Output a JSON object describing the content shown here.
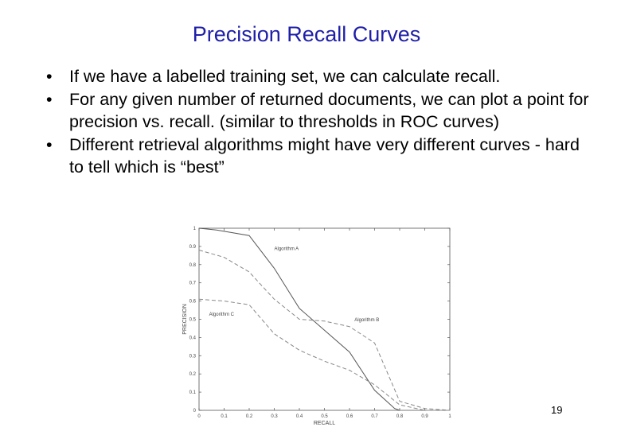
{
  "slide": {
    "title": "Precision Recall Curves",
    "bullets": [
      "If we have a labelled training set, we can calculate recall.",
      "For any given number of returned documents,  we can plot a point for precision vs. recall.  (similar to thresholds in ROC curves)",
      "Different retrieval algorithms might have very different curves - hard to tell which is “best”"
    ],
    "page_number": "19"
  },
  "chart_data": {
    "type": "line",
    "xlabel": "RECALL",
    "ylabel": "PRECISION",
    "xlim": [
      0,
      1
    ],
    "ylim": [
      0,
      1
    ],
    "x_ticks": [
      "0",
      "0.1",
      "0.2",
      "0.3",
      "0.4",
      "0.5",
      "0.6",
      "0.7",
      "0.8",
      "0.9",
      "1"
    ],
    "y_ticks": [
      "0",
      "0.1",
      "0.2",
      "0.3",
      "0.4",
      "0.5",
      "0.6",
      "0.7",
      "0.8",
      "0.9",
      "1"
    ],
    "grid": false,
    "series": [
      {
        "name": "Algorithm A",
        "style": "solid",
        "x": [
          0,
          0.07,
          0.2,
          0.3,
          0.4,
          0.5,
          0.6,
          0.7,
          0.78,
          0.8
        ],
        "y": [
          1.0,
          0.99,
          0.96,
          0.78,
          0.56,
          0.44,
          0.32,
          0.11,
          0.01,
          0.0
        ]
      },
      {
        "name": "Algorithm B",
        "style": "dashed",
        "x": [
          0,
          0.1,
          0.2,
          0.3,
          0.4,
          0.5,
          0.6,
          0.7,
          0.8,
          0.9,
          1.0
        ],
        "y": [
          0.88,
          0.84,
          0.76,
          0.61,
          0.5,
          0.49,
          0.46,
          0.37,
          0.05,
          0.01,
          0.0
        ]
      },
      {
        "name": "Algorithm C",
        "style": "dashed",
        "x": [
          0,
          0.1,
          0.2,
          0.3,
          0.4,
          0.5,
          0.6,
          0.7,
          0.8,
          0.9,
          1.0
        ],
        "y": [
          0.61,
          0.6,
          0.58,
          0.42,
          0.33,
          0.27,
          0.22,
          0.14,
          0.03,
          0.0,
          0.0
        ]
      }
    ],
    "annotations": [
      {
        "text": "Algorithm A",
        "x": 0.3,
        "y": 0.88
      },
      {
        "text": "Algorithm B",
        "x": 0.62,
        "y": 0.49
      },
      {
        "text": "Algorithm C",
        "x": 0.04,
        "y": 0.52
      }
    ]
  }
}
